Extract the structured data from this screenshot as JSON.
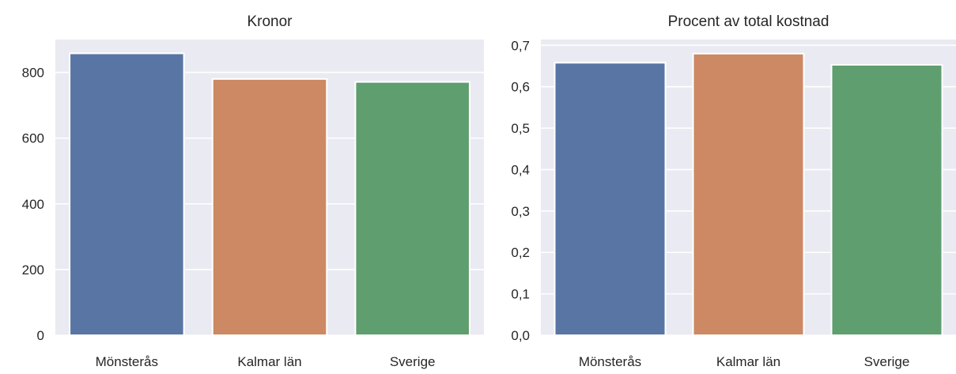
{
  "chart_data": [
    {
      "type": "bar",
      "title": "Kronor",
      "xlabel": "",
      "ylabel": "",
      "categories": [
        "Mönsterås",
        "Kalmar län",
        "Sverige"
      ],
      "values": [
        858,
        780,
        771
      ],
      "colors": [
        "#5975a4",
        "#cc8963",
        "#5f9e6e"
      ],
      "ylim": [
        0,
        900
      ],
      "yticks": [
        0,
        200,
        400,
        600,
        800
      ],
      "ytick_labels": [
        "0",
        "200",
        "400",
        "600",
        "800"
      ],
      "grid": true,
      "background": "#eaeaf2"
    },
    {
      "type": "bar",
      "title": "Procent av total kostnad",
      "xlabel": "",
      "ylabel": "",
      "categories": [
        "Mönsterås",
        "Kalmar län",
        "Sverige"
      ],
      "values": [
        0.658,
        0.68,
        0.653
      ],
      "colors": [
        "#5975a4",
        "#cc8963",
        "#5f9e6e"
      ],
      "ylim": [
        0,
        0.714
      ],
      "yticks": [
        0,
        0.1,
        0.2,
        0.3,
        0.4,
        0.5,
        0.6,
        0.7
      ],
      "ytick_labels": [
        "0,0",
        "0,1",
        "0,2",
        "0,3",
        "0,4",
        "0,5",
        "0,6",
        "0,7"
      ],
      "grid": true,
      "background": "#eaeaf2"
    }
  ]
}
